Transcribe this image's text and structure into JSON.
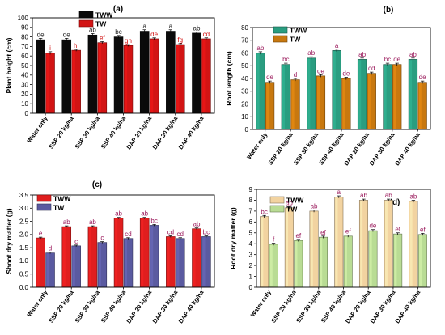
{
  "figure": {
    "panels": [
      "(a)",
      "(b)",
      "(c)",
      "(d)"
    ]
  },
  "chart_data": [
    {
      "panel": "(a)",
      "type": "bar",
      "categories": [
        "Water only",
        "SSP 20 kg/ha",
        "SSP 30 kg/ha",
        "SSP 40 kg/ha",
        "DAP 20 kg/ha",
        "DAP 30 kg/ha",
        "DAP 40 kg/ha"
      ],
      "series": [
        {
          "name": "TWW",
          "values": [
            77,
            77,
            82,
            80,
            86,
            86,
            84
          ],
          "errors": [
            1.5,
            1.5,
            1.5,
            1.5,
            1.5,
            1.5,
            1.2
          ],
          "labels": [
            "de",
            "de",
            "ab",
            "bc",
            "a",
            "a",
            "ab"
          ],
          "color": "#0a0a0a",
          "label_color": "#1a1a1a"
        },
        {
          "name": "TW",
          "values": [
            63,
            66,
            74,
            71,
            78,
            72,
            78
          ],
          "errors": [
            1.5,
            1.0,
            1.0,
            1.0,
            1.0,
            1.0,
            1.0
          ],
          "labels": [
            "i",
            "hi",
            "ef",
            "gh",
            "de",
            "fg",
            "cd"
          ],
          "color": "#d21414",
          "label_color": "#d21414"
        }
      ],
      "ylabel": "Plant height (cm)",
      "ylim": [
        0,
        100
      ],
      "yticks": [
        0,
        10,
        20,
        30,
        40,
        50,
        60,
        70,
        80,
        90,
        100
      ],
      "legend_position": "top-center"
    },
    {
      "panel": "(b)",
      "type": "bar",
      "categories": [
        "Water only",
        "SSP 20 kg/ha",
        "SSP 30 kg/ha",
        "SSP 40 kg/ha",
        "DAP 20 kg/ha",
        "DAP 30 kg/ha",
        "DAP 40 kg/ha"
      ],
      "series": [
        {
          "name": "TWW",
          "values": [
            60,
            51,
            56,
            62,
            55,
            51,
            55
          ],
          "errors": [
            1,
            1,
            1,
            1,
            1,
            1,
            1
          ],
          "labels": [
            "ab",
            "bc",
            "ab",
            "a",
            "ab",
            "bc",
            "ab"
          ],
          "color": "#2a9d80",
          "label_color": "#9b1a5c"
        },
        {
          "name": "TW",
          "values": [
            37,
            39,
            42,
            40,
            44,
            51,
            37
          ],
          "errors": [
            1,
            1,
            1,
            1,
            1,
            1,
            1
          ],
          "labels": [
            "de",
            "d",
            "de",
            "de",
            "cd",
            "de",
            "de"
          ],
          "color": "#c8780f",
          "label_color": "#9b1a5c"
        }
      ],
      "ylabel": "Root length (cm)",
      "ylim": [
        0,
        80
      ],
      "yticks": [
        0,
        10,
        20,
        30,
        40,
        50,
        60,
        70,
        80
      ],
      "legend_position": "top-center"
    },
    {
      "panel": "(c)",
      "type": "bar",
      "categories": [
        "Water only",
        "SSP 20 kg/ha",
        "SSP 30 kg/ha",
        "SSP 40 kg/ha",
        "DAP 20 kg/ha",
        "DAP 30 kg/ha",
        "DAP 40 kg/ha"
      ],
      "series": [
        {
          "name": "TWW",
          "values": [
            1.87,
            2.3,
            2.3,
            2.62,
            2.62,
            1.92,
            2.22
          ],
          "errors": [
            0.03,
            0.03,
            0.03,
            0.03,
            0.03,
            0.03,
            0.03
          ],
          "labels": [
            "e",
            "ab",
            "ab",
            "ab",
            "ab",
            "cd",
            "ab"
          ],
          "color": "#e01e1e",
          "label_color": "#9b1a5c"
        },
        {
          "name": "TW",
          "values": [
            1.3,
            1.57,
            1.7,
            1.85,
            2.35,
            1.85,
            1.92
          ],
          "errors": [
            0.03,
            0.03,
            0.03,
            0.03,
            0.03,
            0.03,
            0.03
          ],
          "labels": [
            "d",
            "c",
            "c",
            "cd",
            "bc",
            "cd",
            "bc"
          ],
          "color": "#5a5aa0",
          "label_color": "#9b1a5c"
        }
      ],
      "ylabel": "Shoot dry matter (g)",
      "ylim": [
        0,
        3.5
      ],
      "yticks": [
        0.0,
        0.5,
        1.0,
        1.5,
        2.0,
        2.5,
        3.0,
        3.5
      ],
      "legend_position": "top-left"
    },
    {
      "panel": "(d)",
      "type": "bar",
      "categories": [
        "Water only",
        "SSP 20 kg/ha",
        "SSP 30 kg/ha",
        "SSP 40 kg/ha",
        "DAP 20 kg/ha",
        "DAP 30 kg/ha",
        "DAP 40 kg/ha"
      ],
      "series": [
        {
          "name": "TWW",
          "values": [
            6.5,
            7.3,
            7.0,
            8.3,
            8.0,
            8.0,
            7.9
          ],
          "errors": [
            0.1,
            0.1,
            0.1,
            0.1,
            0.1,
            0.1,
            0.1
          ],
          "labels": [
            "bc",
            "ab",
            "ab",
            "a",
            "ab",
            "ab",
            "ab"
          ],
          "color": "#f2d3a0",
          "label_color": "#9b1a5c"
        },
        {
          "name": "TW",
          "values": [
            3.95,
            4.3,
            4.6,
            4.7,
            5.2,
            4.9,
            4.85
          ],
          "errors": [
            0.1,
            0.1,
            0.1,
            0.1,
            0.1,
            0.1,
            0.1
          ],
          "labels": [
            "f",
            "ef",
            "ef",
            "ef",
            "de",
            "ef",
            "ef"
          ],
          "color": "#b9dc94",
          "label_color": "#9b1a5c"
        }
      ],
      "ylabel": "Root dry matter (g)",
      "ylim": [
        0,
        9
      ],
      "yticks": [
        0,
        1,
        2,
        3,
        4,
        5,
        6,
        7,
        8,
        9
      ],
      "legend_position": "top-left"
    }
  ]
}
